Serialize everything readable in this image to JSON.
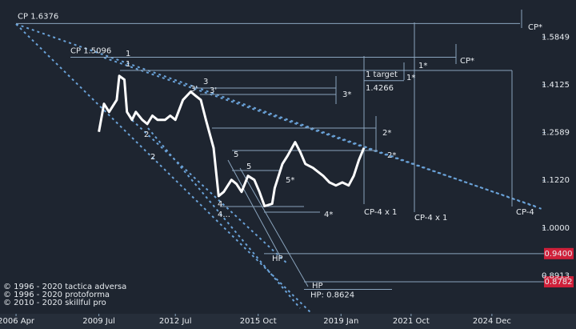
{
  "chart_data": {
    "type": "line",
    "x": [
      2009.5,
      2009.7,
      2009.9,
      2010.2,
      2010.3,
      2010.5,
      2010.6,
      2010.8,
      2010.95,
      2011.2,
      2011.4,
      2011.6,
      2011.8,
      2012.1,
      2012.3,
      2012.5,
      2012.8,
      2013.1,
      2013.3,
      2013.5,
      2013.7,
      2014.0,
      2014.2,
      2014.4,
      2014.7,
      2014.9,
      2015.1,
      2015.35,
      2015.6,
      2015.8,
      2016.0,
      2016.3,
      2016.4,
      2016.7,
      2016.9,
      2017.2,
      2017.4,
      2017.6,
      2017.9,
      2018.1,
      2018.3,
      2018.55,
      2018.8,
      2019.05,
      2019.3,
      2019.5,
      2019.7,
      2019.9
    ],
    "values": [
      1.261,
      1.349,
      1.323,
      1.362,
      1.443,
      1.43,
      1.323,
      1.298,
      1.323,
      1.298,
      1.285,
      1.311,
      1.298,
      1.298,
      1.311,
      1.298,
      1.362,
      1.389,
      1.375,
      1.362,
      1.298,
      1.213,
      1.08,
      1.091,
      1.123,
      1.112,
      1.091,
      1.134,
      1.123,
      1.091,
      1.054,
      1.06,
      1.101,
      1.167,
      1.19,
      1.23,
      1.201,
      1.167,
      1.156,
      1.145,
      1.134,
      1.116,
      1.108,
      1.116,
      1.108,
      1.134,
      1.178,
      1.213
    ],
    "color": "#ffffff",
    "log_scale": true,
    "xlim": [
      2005.62,
      2028.22
    ],
    "xticks": [
      {
        "value": 2006.25,
        "label": "2006 Apr"
      },
      {
        "value": 2009.5,
        "label": "2009 Jul"
      },
      {
        "value": 2012.5,
        "label": "2012 Jul"
      },
      {
        "value": 2015.75,
        "label": "2015 Oct"
      },
      {
        "value": 2019.0,
        "label": "2019 Jan"
      },
      {
        "value": 2021.75,
        "label": "2021 Oct"
      },
      {
        "value": 2024.92,
        "label": "2024 Dec"
      }
    ],
    "ylim": [
      0.813,
      1.733
    ],
    "yticks": [
      1.5849,
      1.4125,
      1.2589,
      {
        "value": 1.122,
        "label": "1.1220"
      },
      {
        "value": 1,
        "label": "1.0000"
      },
      0.8913
    ],
    "levels": [
      {
        "label": "CP 1.6376",
        "value": 1.6376
      },
      {
        "label": "CP 1.5096",
        "value": 1.5096
      },
      {
        "label": "1.4266",
        "value": 1.4266
      },
      {
        "label": "HP: 0.8624",
        "value": 0.8624
      }
    ],
    "price_tags": [
      {
        "value": 0.94,
        "label": "0.9400"
      },
      {
        "value": 0.8782,
        "label": "0.8782"
      }
    ],
    "annotations": [
      "1",
      "1",
      "2",
      "2",
      "3",
      "3'",
      "3'",
      "4",
      "4...",
      "4*",
      "5",
      "5",
      "5*",
      "1*",
      "1*",
      "2*",
      "2*",
      "3*",
      "CP*",
      "CP*",
      "1 target",
      "CP-4 x 1",
      "CP-4 x 1",
      "CP-4",
      "HP",
      "HP"
    ],
    "footer": [
      "© 1996 - 2020 tactica adversa",
      "© 1996 - 2020 protoforma",
      "© 2010 - 2020 skillful pro"
    ]
  }
}
